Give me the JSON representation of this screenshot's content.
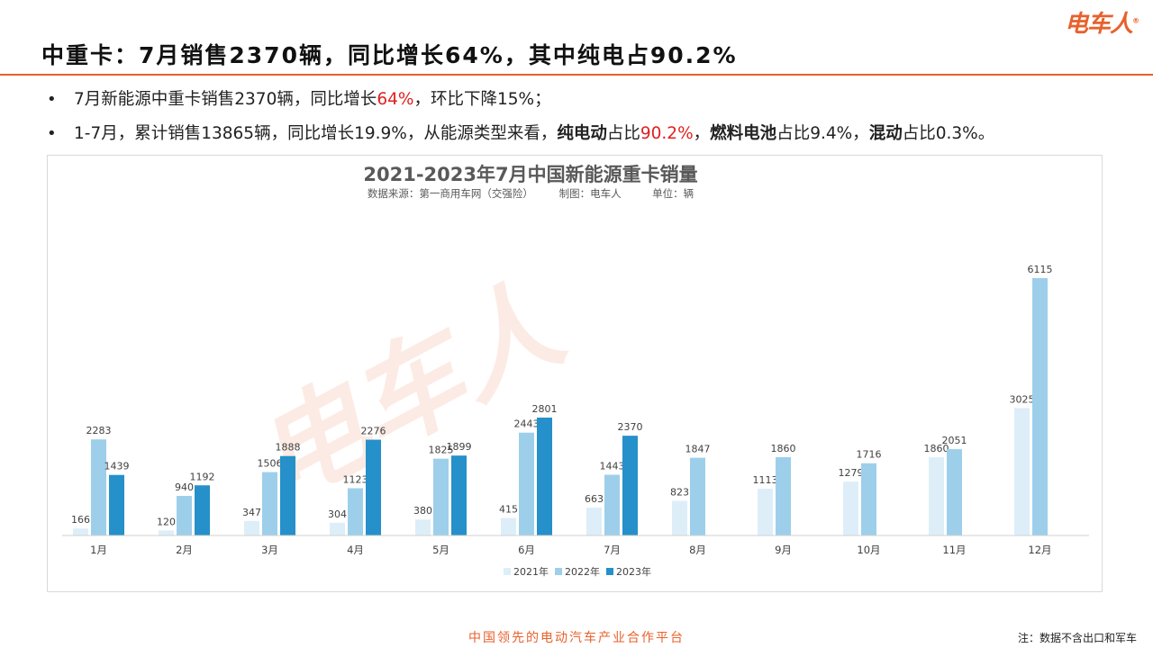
{
  "slide": {
    "title": "中重卡：7月销售2370辆，同比增长64%，其中纯电占90.2%",
    "logo": "电车人",
    "bullet1": {
      "p1": "7月新能源中重卡销售2370辆，同比增长",
      "red1": "64%",
      "p2": "，环比下降15%；"
    },
    "bullet2": {
      "p1": "1-7月，累计销售13865辆，同比增长19.9%，从能源类型来看，",
      "b1": "纯电动",
      "p2": "占比",
      "red1": "90.2%",
      "p3": "，",
      "b2": "燃料电池",
      "p4": "占比9.4%，",
      "b3": "混动",
      "p5": "占比0.3%。"
    },
    "footer": "中国领先的电动汽车产业合作平台",
    "note": "注：数据不含出口和军车"
  },
  "colors": {
    "accent": "#e8612c",
    "s2021": "#ddeef9",
    "s2022": "#9dcfeb",
    "s2023": "#2590c9"
  },
  "chart_data": {
    "type": "bar",
    "title": "2021-2023年7月中国新能源重卡销量",
    "subtitle": "数据来源：第一商用车网（交强险）　　　制图：电车人　　　单位：辆",
    "watermark": "电车人",
    "categories": [
      "1月",
      "2月",
      "3月",
      "4月",
      "5月",
      "6月",
      "7月",
      "8月",
      "9月",
      "10月",
      "11月",
      "12月"
    ],
    "series": [
      {
        "name": "2021年",
        "values": [
          166,
          120,
          347,
          304,
          380,
          415,
          663,
          823,
          1113,
          1279,
          1860,
          3025
        ]
      },
      {
        "name": "2022年",
        "values": [
          2283,
          940,
          1506,
          1123,
          1825,
          2443,
          1443,
          1847,
          1860,
          1716,
          2051,
          6115
        ]
      },
      {
        "name": "2023年",
        "values": [
          1439,
          1192,
          1888,
          2276,
          1899,
          2801,
          2370,
          null,
          null,
          null,
          null,
          null
        ]
      }
    ],
    "ylim": [
      0,
      6500
    ],
    "legend_position": "bottom",
    "grid": false
  }
}
